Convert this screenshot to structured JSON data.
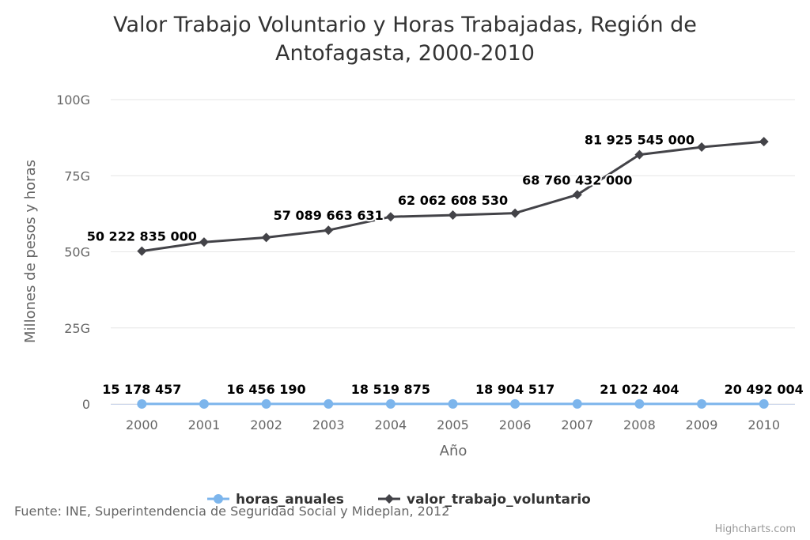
{
  "chart_data": {
    "type": "line",
    "title": "Valor Trabajo Voluntario y Horas Trabajadas, Región de Antofagasta, 2000-2010",
    "title_lines": [
      "Valor Trabajo Voluntario y Horas Trabajadas, Región de",
      "Antofagasta, 2000-2010"
    ],
    "xlabel": "Año",
    "ylabel": "Millones de pesos y horas",
    "categories": [
      "2000",
      "2001",
      "2002",
      "2003",
      "2004",
      "2005",
      "2006",
      "2007",
      "2008",
      "2009",
      "2010"
    ],
    "ylim": [
      0,
      100000000000
    ],
    "yticks": [
      {
        "value": 0,
        "label": "0"
      },
      {
        "value": 25000000000,
        "label": "25G"
      },
      {
        "value": 50000000000,
        "label": "50G"
      },
      {
        "value": 75000000000,
        "label": "75G"
      },
      {
        "value": 100000000000,
        "label": "100G"
      }
    ],
    "grid": true,
    "legend_position": "bottom-center",
    "series": [
      {
        "name": "horas_anuales",
        "color": "#7cb5ec",
        "marker": "circle",
        "values": [
          15178457,
          15800000,
          16456190,
          17500000,
          18519875,
          18700000,
          18904517,
          20000000,
          21022404,
          20800000,
          20492004
        ],
        "data_labels": [
          {
            "index": 0,
            "text": "15 178 457"
          },
          {
            "index": 2,
            "text": "16 456 190"
          },
          {
            "index": 4,
            "text": "18 519 875"
          },
          {
            "index": 6,
            "text": "18 904 517"
          },
          {
            "index": 8,
            "text": "21 022 404"
          },
          {
            "index": 10,
            "text": "20 492 004"
          }
        ]
      },
      {
        "name": "valor_trabajo_voluntario",
        "color": "#434348",
        "marker": "diamond",
        "values": [
          50222835000,
          53200000000,
          54700000000,
          57089663631,
          61500000000,
          62062608530,
          62700000000,
          68760432000,
          81925545000,
          84400000000,
          86200000000
        ],
        "data_labels": [
          {
            "index": 0,
            "text": "50 222 835 000"
          },
          {
            "index": 3,
            "text": "57 089 663 631"
          },
          {
            "index": 5,
            "text": "62 062 608 530"
          },
          {
            "index": 7,
            "text": "68 760 432 000"
          },
          {
            "index": 8,
            "text": "81 925 545 000"
          }
        ]
      }
    ],
    "source": "Fuente: INE, Superintendencia de Seguridad Social y Mideplan, 2012",
    "credits": "Highcharts.com"
  }
}
